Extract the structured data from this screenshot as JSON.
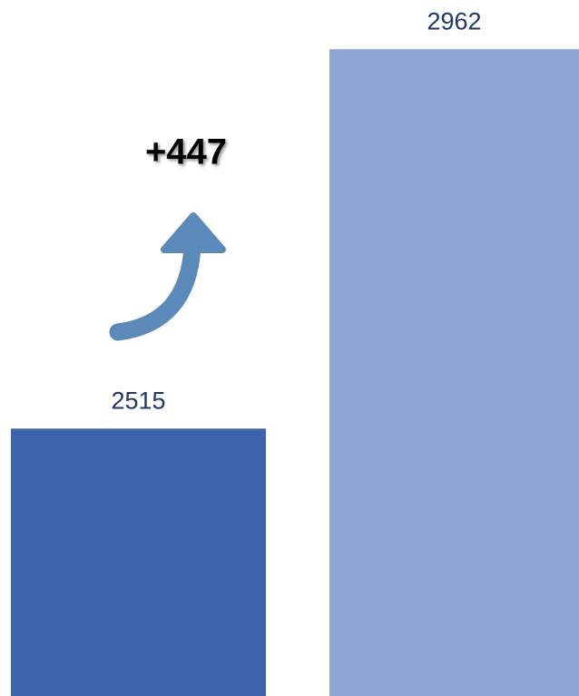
{
  "chart_data": {
    "type": "bar",
    "categories": [
      null,
      null
    ],
    "values": [
      2515,
      2962
    ],
    "colors": [
      "#3f63aa",
      "#8fa3d5"
    ],
    "ylim": [
      2200,
      3020
    ],
    "annotation": "+447"
  }
}
